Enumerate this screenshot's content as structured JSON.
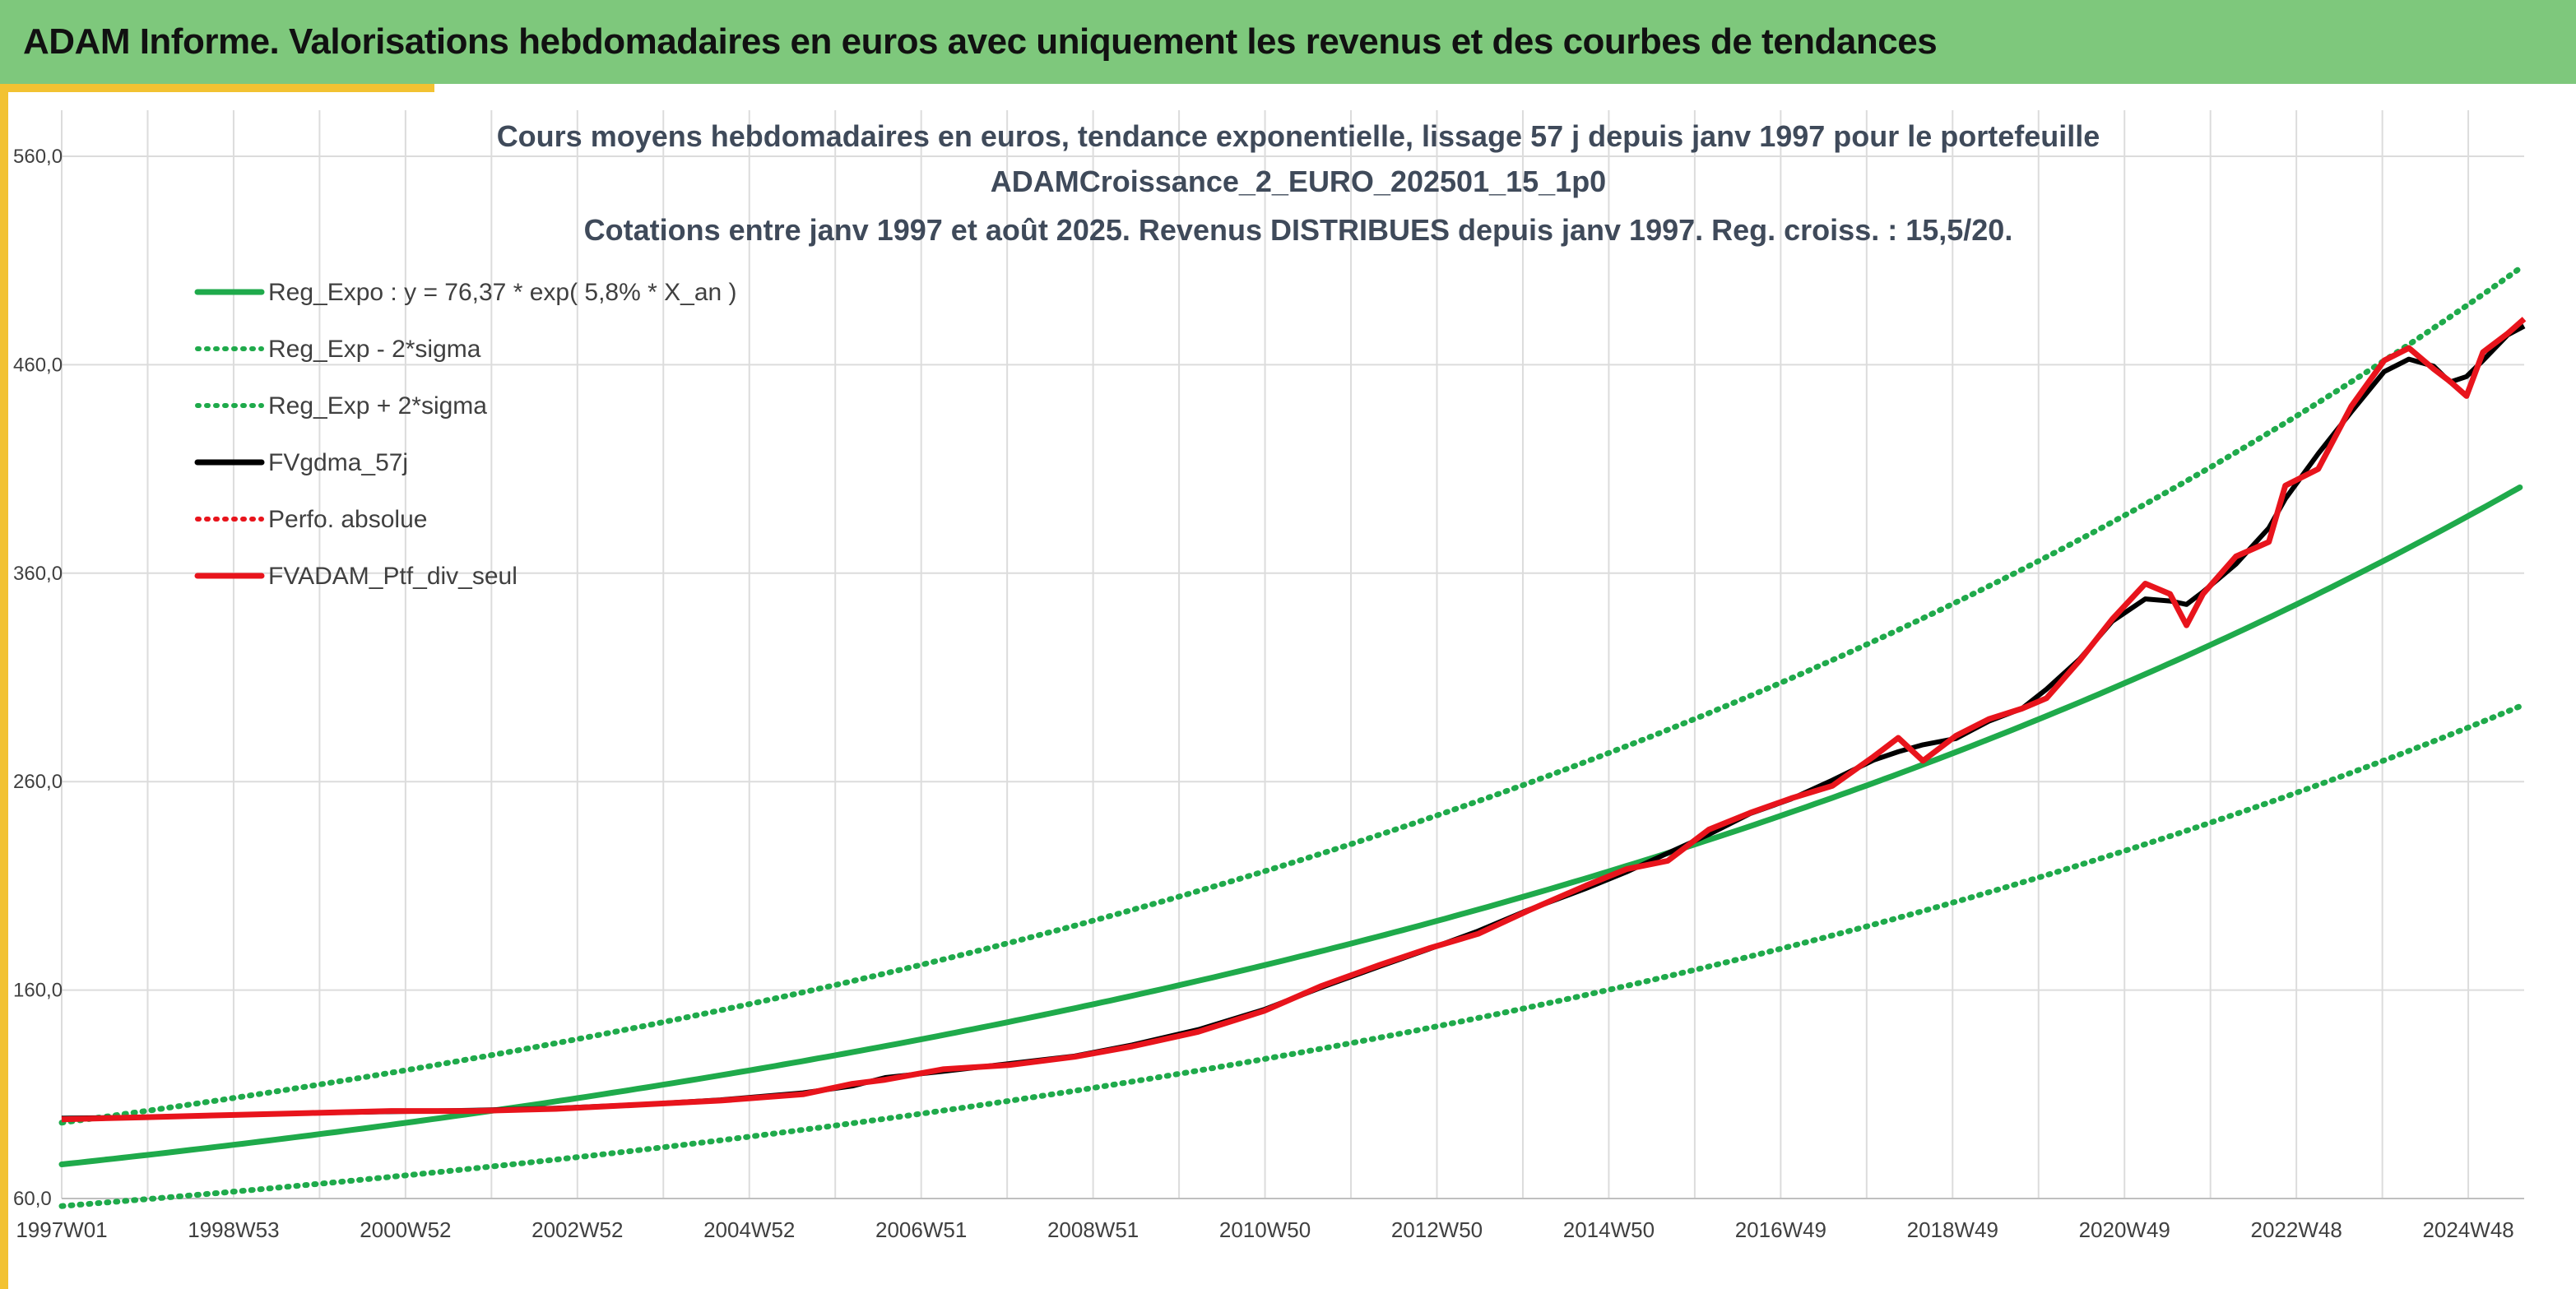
{
  "header": {
    "title": "ADAM Informe. Valorisations hebdomadaires en euros avec uniquement les revenus et des courbes de tendances"
  },
  "colors": {
    "banner": "#7ec87c",
    "accent": "#f2c232",
    "reg_expo": "#1faa4b",
    "fv_gdma": "#000000",
    "ptf": "#e8141c"
  },
  "chart_data": {
    "type": "line",
    "title": [
      "Cours moyens hebdomadaires en euros, tendance exponentielle, lissage 57 j depuis janv 1997 pour le portefeuille",
      "ADAMCroissance_2_EURO_202501_15_1p0",
      "Cotations entre janv 1997 et août 2025. Revenus DISTRIBUES depuis janv 1997. Reg. croiss. : 15,5/20."
    ],
    "xlabel": "",
    "ylabel": "",
    "ylim": [
      60,
      560
    ],
    "xlim": [
      1997.0,
      2025.65
    ],
    "y_ticks": [
      "60,0",
      "160,0",
      "260,0",
      "360,0",
      "460,0",
      "560,0"
    ],
    "x_ticks": [
      {
        "x": 1997.0,
        "label": "1997W01"
      },
      {
        "x": 1999.0,
        "label": "1998W53"
      },
      {
        "x": 2001.0,
        "label": "2000W52"
      },
      {
        "x": 2003.0,
        "label": "2002W52"
      },
      {
        "x": 2005.0,
        "label": "2004W52"
      },
      {
        "x": 2007.0,
        "label": "2006W51"
      },
      {
        "x": 2009.0,
        "label": "2008W51"
      },
      {
        "x": 2011.0,
        "label": "2010W50"
      },
      {
        "x": 2013.0,
        "label": "2012W50"
      },
      {
        "x": 2015.0,
        "label": "2014W50"
      },
      {
        "x": 2017.0,
        "label": "2016W49"
      },
      {
        "x": 2019.0,
        "label": "2018W49"
      },
      {
        "x": 2021.0,
        "label": "2020W49"
      },
      {
        "x": 2023.0,
        "label": "2022W48"
      },
      {
        "x": 2025.0,
        "label": "2024W48"
      }
    ],
    "grid": "vertical and horizontal",
    "legend_position": "top-left",
    "series": [
      {
        "name": "Reg_Expo : y = 76,37 * exp( 5,8% *  X_an )",
        "style": "solid",
        "color": "#1faa4b",
        "formula": {
          "a": 76.37,
          "rate": 0.058,
          "offset": 0
        }
      },
      {
        "name": "Reg_Exp - 2*sigma",
        "style": "dotted",
        "color": "#1faa4b",
        "formula": {
          "a": 76.37,
          "rate": 0.058,
          "offset": -20
        }
      },
      {
        "name": "Reg_Exp + 2*sigma",
        "style": "dotted",
        "color": "#1faa4b",
        "formula": {
          "a": 76.37,
          "rate": 0.058,
          "offset": 20
        }
      },
      {
        "name": "FVgdma_57j",
        "style": "solid",
        "color": "#000000"
      },
      {
        "name": "Perfo. absolue",
        "style": "dotted",
        "color": "#e8141c"
      },
      {
        "name": "FVADAM_Ptf_div_seul",
        "style": "solid",
        "color": "#e8141c"
      }
    ],
    "portfolio_points": [
      [
        1997.0,
        98
      ],
      [
        1998.0,
        99
      ],
      [
        1999.0,
        100
      ],
      [
        2000.0,
        101
      ],
      [
        2001.0,
        102
      ],
      [
        2002.0,
        102
      ],
      [
        2003.0,
        103
      ],
      [
        2004.0,
        105
      ],
      [
        2005.0,
        107
      ],
      [
        2006.0,
        110
      ],
      [
        2006.6,
        115
      ],
      [
        2007.0,
        117
      ],
      [
        2007.7,
        122
      ],
      [
        2008.5,
        124
      ],
      [
        2009.3,
        128
      ],
      [
        2010.0,
        133
      ],
      [
        2010.8,
        140
      ],
      [
        2011.6,
        150
      ],
      [
        2012.3,
        162
      ],
      [
        2013.0,
        172
      ],
      [
        2013.6,
        180
      ],
      [
        2014.2,
        187
      ],
      [
        2014.8,
        198
      ],
      [
        2015.5,
        210
      ],
      [
        2016.0,
        218
      ],
      [
        2016.5,
        222
      ],
      [
        2017.0,
        237
      ],
      [
        2017.5,
        245
      ],
      [
        2018.0,
        252
      ],
      [
        2018.5,
        258
      ],
      [
        2019.0,
        272
      ],
      [
        2019.3,
        281
      ],
      [
        2019.6,
        270
      ],
      [
        2020.0,
        282
      ],
      [
        2020.4,
        290
      ],
      [
        2020.8,
        295
      ],
      [
        2021.1,
        300
      ],
      [
        2021.5,
        318
      ],
      [
        2021.9,
        338
      ],
      [
        2022.3,
        355
      ],
      [
        2022.6,
        350
      ],
      [
        2022.8,
        335
      ],
      [
        2023.0,
        350
      ],
      [
        2023.4,
        368
      ],
      [
        2023.8,
        375
      ],
      [
        2024.0,
        402
      ],
      [
        2024.4,
        410
      ],
      [
        2024.8,
        440
      ],
      [
        2025.2,
        462
      ],
      [
        2025.5,
        468
      ],
      [
        2025.8,
        458
      ],
      [
        2026.0,
        452
      ],
      [
        2026.2,
        445
      ],
      [
        2026.4,
        466
      ],
      [
        2026.7,
        475
      ],
      [
        2026.9,
        482
      ]
    ]
  }
}
